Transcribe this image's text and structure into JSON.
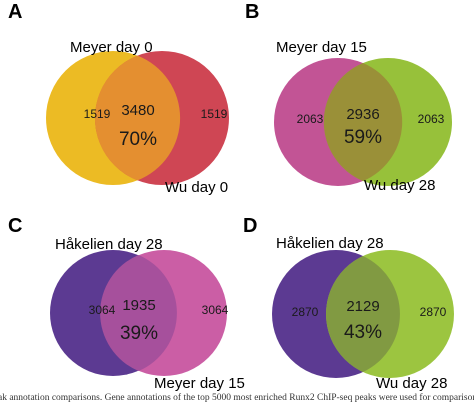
{
  "panels": [
    {
      "letter": "A",
      "left_label": "Meyer day 0",
      "right_label": "Wu day 0",
      "left_only": "1519",
      "overlap": "3480",
      "right_only": "1519",
      "percent": "70%",
      "left_color": "#ecbb24",
      "right_color": "#cf4654",
      "mix_color": "#e48f30"
    },
    {
      "letter": "B",
      "left_label": "Meyer day 15",
      "right_label": "Wu day 28",
      "left_only": "2063",
      "overlap": "2936",
      "right_only": "2063",
      "percent": "59%",
      "left_color": "#c25495",
      "right_color": "#97c13a",
      "mix_color": "#9a9038"
    },
    {
      "letter": "C",
      "left_label": "Håkelien day 28",
      "right_label": "Meyer day 15",
      "left_only": "3064",
      "overlap": "1935",
      "right_only": "3064",
      "percent": "39%",
      "left_color": "#5c3a92",
      "right_color": "#cb5ea5",
      "mix_color": "#a6509c"
    },
    {
      "letter": "D",
      "left_label": "Håkelien day 28",
      "right_label": "Wu day 28",
      "left_only": "2870",
      "overlap": "2129",
      "right_only": "2870",
      "percent": "43%",
      "left_color": "#5c3a92",
      "right_color": "#9cc540",
      "mix_color": "#819a42"
    }
  ],
  "caption": "ak annotation comparisons. Gene annotations of the top 5000 most enriched Runx2 ChIP-seq peaks were used for comparisons"
}
